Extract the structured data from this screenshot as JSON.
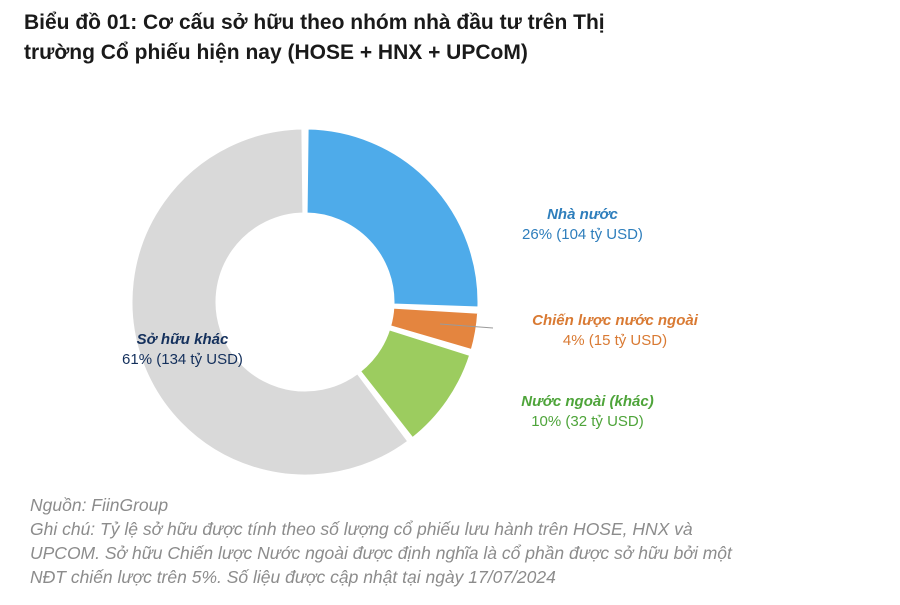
{
  "title": {
    "line1": "Biểu đồ 01: Cơ cấu sở hữu theo nhóm nhà đầu tư trên Thị",
    "line2": "trường Cổ phiếu hiện nay (HOSE + HNX + UPCoM)"
  },
  "chart_data": {
    "type": "pie",
    "subtype": "donut",
    "title": "Biểu đồ 01: Cơ cấu sở hữu theo nhóm nhà đầu tư trên Thị trường Cổ phiếu hiện nay (HOSE + HNX + UPCoM)",
    "unit": "tỷ USD",
    "slices": [
      {
        "name": "Nhà nước",
        "percent": 26,
        "value": 104,
        "value_label": "26% (104 tỷ USD)",
        "color": "#4eabea",
        "label_color": "#2e7ebc"
      },
      {
        "name": "Chiến lược nước ngoài",
        "percent": 4,
        "value": 15,
        "value_label": "4% (15 tỷ USD)",
        "color": "#e4853f",
        "label_color": "#d97a33"
      },
      {
        "name": "Nước ngoài (khác)",
        "percent": 10,
        "value": 32,
        "value_label": "10% (32 tỷ USD)",
        "color": "#9ccc5f",
        "label_color": "#4ea43a"
      },
      {
        "name": "Sở hữu khác",
        "percent": 61,
        "value": 134,
        "value_label": "61% (134 tỷ USD)",
        "color": "#d9d9d9",
        "label_color": "#14305c"
      }
    ]
  },
  "footnote": {
    "source": "Nguồn: FiinGroup",
    "note_line1": "Ghi chú: Tỷ lệ sở hữu được tính theo số lượng cổ phiếu lưu hành trên HOSE, HNX và",
    "note_line2": "UPCOM. Sở hữu Chiến lược Nước ngoài được định nghĩa là cổ phần được sở hữu bởi một",
    "note_line3": "NĐT chiến lược trên 5%. Số liệu được cập nhật tại ngày 17/07/2024"
  }
}
